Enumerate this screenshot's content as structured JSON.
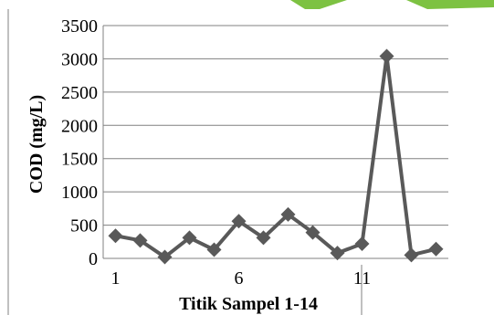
{
  "chart_data": {
    "type": "line",
    "title": "",
    "xlabel": "Titik Sampel 1-14",
    "ylabel": "COD (mg/L)",
    "x": [
      1,
      2,
      3,
      4,
      5,
      6,
      7,
      8,
      9,
      10,
      11,
      12,
      13,
      14
    ],
    "x_tick_labels": [
      "1",
      "6",
      "11"
    ],
    "x_tick_values": [
      1,
      6,
      11
    ],
    "ylim": [
      0,
      3500
    ],
    "y_ticks": [
      0,
      500,
      1000,
      1500,
      2000,
      2500,
      3000,
      3500
    ],
    "grid": true,
    "series": [
      {
        "values": [
          340,
          270,
          20,
          310,
          130,
          560,
          310,
          660,
          390,
          80,
          220,
          3040,
          50,
          140
        ],
        "color": "#595959",
        "marker": "diamond"
      }
    ]
  },
  "decor": {
    "accent_color": "#7dc242"
  }
}
